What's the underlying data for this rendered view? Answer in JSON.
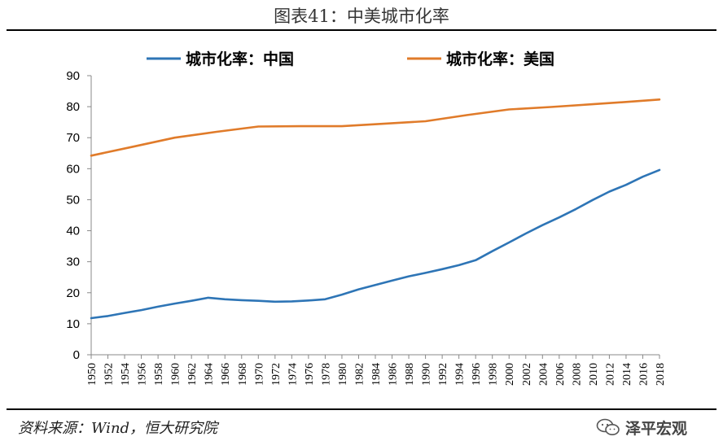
{
  "title": "图表41：中美城市化率",
  "source": "资料来源：Wind，恒大研究院",
  "watermark": {
    "text": "泽平宏观",
    "icon": "wechat-icon"
  },
  "chart_data": {
    "type": "line",
    "xlabel": "",
    "ylabel": "",
    "ylim": [
      0,
      90
    ],
    "yticks": [
      0,
      10,
      20,
      30,
      40,
      50,
      60,
      70,
      80,
      90
    ],
    "xticks": [
      1950,
      1952,
      1954,
      1956,
      1958,
      1960,
      1962,
      1964,
      1966,
      1968,
      1970,
      1972,
      1974,
      1976,
      1978,
      1980,
      1982,
      1984,
      1986,
      1988,
      1990,
      1992,
      1994,
      1996,
      1998,
      2000,
      2002,
      2004,
      2006,
      2008,
      2010,
      2012,
      2014,
      2016,
      2018
    ],
    "legend_position": "top",
    "grid": false,
    "series": [
      {
        "name": "城市化率：中国",
        "color": "#2e75b6",
        "points": [
          [
            1950,
            11.8
          ],
          [
            1952,
            12.5
          ],
          [
            1954,
            13.5
          ],
          [
            1956,
            14.4
          ],
          [
            1958,
            15.5
          ],
          [
            1960,
            16.5
          ],
          [
            1962,
            17.4
          ],
          [
            1964,
            18.4
          ],
          [
            1966,
            17.9
          ],
          [
            1968,
            17.6
          ],
          [
            1970,
            17.4
          ],
          [
            1972,
            17.1
          ],
          [
            1974,
            17.2
          ],
          [
            1976,
            17.5
          ],
          [
            1978,
            17.9
          ],
          [
            1980,
            19.4
          ],
          [
            1982,
            21.1
          ],
          [
            1984,
            22.5
          ],
          [
            1986,
            23.9
          ],
          [
            1988,
            25.3
          ],
          [
            1990,
            26.4
          ],
          [
            1992,
            27.6
          ],
          [
            1994,
            28.9
          ],
          [
            1996,
            30.5
          ],
          [
            1998,
            33.4
          ],
          [
            2000,
            36.2
          ],
          [
            2002,
            39.1
          ],
          [
            2004,
            41.8
          ],
          [
            2006,
            44.3
          ],
          [
            2008,
            47.0
          ],
          [
            2010,
            49.9
          ],
          [
            2012,
            52.6
          ],
          [
            2014,
            54.8
          ],
          [
            2016,
            57.4
          ],
          [
            2018,
            59.6
          ]
        ]
      },
      {
        "name": "城市化率：美国",
        "color": "#e07b2a",
        "points": [
          [
            1950,
            64.2
          ],
          [
            1955,
            67.1
          ],
          [
            1960,
            70.0
          ],
          [
            1965,
            71.9
          ],
          [
            1970,
            73.6
          ],
          [
            1975,
            73.7
          ],
          [
            1980,
            73.7
          ],
          [
            1985,
            74.5
          ],
          [
            1990,
            75.3
          ],
          [
            1995,
            77.3
          ],
          [
            2000,
            79.1
          ],
          [
            2005,
            79.9
          ],
          [
            2010,
            80.8
          ],
          [
            2015,
            81.7
          ],
          [
            2018,
            82.3
          ]
        ]
      }
    ]
  }
}
